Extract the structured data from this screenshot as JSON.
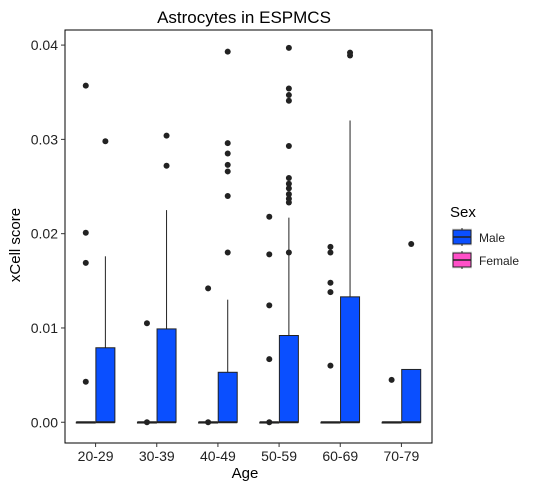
{
  "chart_data": {
    "type": "box",
    "title": "Astrocytes in ESPMCS",
    "xlabel": "Age",
    "ylabel": "xCell score",
    "ylim": [
      -0.0022,
      0.0416
    ],
    "yticks": [
      0.0,
      0.01,
      0.02,
      0.03,
      0.04
    ],
    "ytick_labels": [
      "0.00",
      "0.01",
      "0.02",
      "0.03",
      "0.04"
    ],
    "categories": [
      "20-29",
      "30-39",
      "40-49",
      "50-59",
      "60-69",
      "70-79"
    ],
    "grid": false,
    "legend_position": "right",
    "legend": {
      "title": "Sex",
      "items": [
        {
          "label": "Male",
          "color": "#0a4fff"
        },
        {
          "label": "Female",
          "color": "#ff4fc8"
        }
      ]
    },
    "groups": [
      {
        "category": "20-29",
        "boxes": [
          {
            "series": "Female",
            "q1": 0,
            "median": 0,
            "q3": 0,
            "whisker_low": 0,
            "whisker_high": 0,
            "outliers": [
              0.0357,
              0.0201,
              0.0169,
              0.0043
            ]
          },
          {
            "series": "Male",
            "q1": 0,
            "median": 0,
            "q3": 0.0079,
            "whisker_low": 0,
            "whisker_high": 0.0176,
            "outliers": [
              0.0298
            ]
          }
        ]
      },
      {
        "category": "30-39",
        "boxes": [
          {
            "series": "Female",
            "q1": 0,
            "median": 0,
            "q3": 0,
            "whisker_low": 0,
            "whisker_high": 0,
            "outliers": [
              0.0105,
              0.0
            ]
          },
          {
            "series": "Male",
            "q1": 0,
            "median": 0,
            "q3": 0.0099,
            "whisker_low": 0,
            "whisker_high": 0.0225,
            "outliers": [
              0.0304,
              0.0272
            ]
          }
        ]
      },
      {
        "category": "40-49",
        "boxes": [
          {
            "series": "Female",
            "q1": 0,
            "median": 0,
            "q3": 0,
            "whisker_low": 0,
            "whisker_high": 0,
            "outliers": [
              0.0142,
              0.0
            ]
          },
          {
            "series": "Male",
            "q1": 0,
            "median": 0,
            "q3": 0.0053,
            "whisker_low": 0,
            "whisker_high": 0.013,
            "outliers": [
              0.0393,
              0.0296,
              0.0285,
              0.0273,
              0.0266,
              0.024,
              0.018
            ]
          }
        ]
      },
      {
        "category": "50-59",
        "boxes": [
          {
            "series": "Female",
            "q1": 0,
            "median": 0,
            "q3": 0,
            "whisker_low": 0,
            "whisker_high": 0,
            "outliers": [
              0.0218,
              0.0178,
              0.0124,
              0.0067,
              0.0
            ]
          },
          {
            "series": "Male",
            "q1": 0,
            "median": 0,
            "q3": 0.0092,
            "whisker_low": 0,
            "whisker_high": 0.0217,
            "outliers": [
              0.0397,
              0.0354,
              0.0347,
              0.0341,
              0.0293,
              0.0259,
              0.0253,
              0.0248,
              0.0242,
              0.0237,
              0.0233,
              0.018
            ]
          }
        ]
      },
      {
        "category": "60-69",
        "boxes": [
          {
            "series": "Female",
            "q1": 0,
            "median": 0,
            "q3": 0,
            "whisker_low": 0,
            "whisker_high": 0,
            "outliers": [
              0.0186,
              0.018,
              0.0148,
              0.0138,
              0.006
            ]
          },
          {
            "series": "Male",
            "q1": 0,
            "median": 0,
            "q3": 0.0133,
            "whisker_low": 0,
            "whisker_high": 0.032,
            "outliers": [
              0.0392,
              0.0389
            ]
          }
        ]
      },
      {
        "category": "70-79",
        "boxes": [
          {
            "series": "Female",
            "q1": 0,
            "median": 0,
            "q3": 0,
            "whisker_low": 0,
            "whisker_high": 0,
            "outliers": [
              0.0045
            ]
          },
          {
            "series": "Male",
            "q1": 0,
            "median": 0,
            "q3": 0.0056,
            "whisker_low": 0,
            "whisker_high": 0.0056,
            "outliers": [
              0.0189
            ]
          }
        ]
      }
    ]
  }
}
